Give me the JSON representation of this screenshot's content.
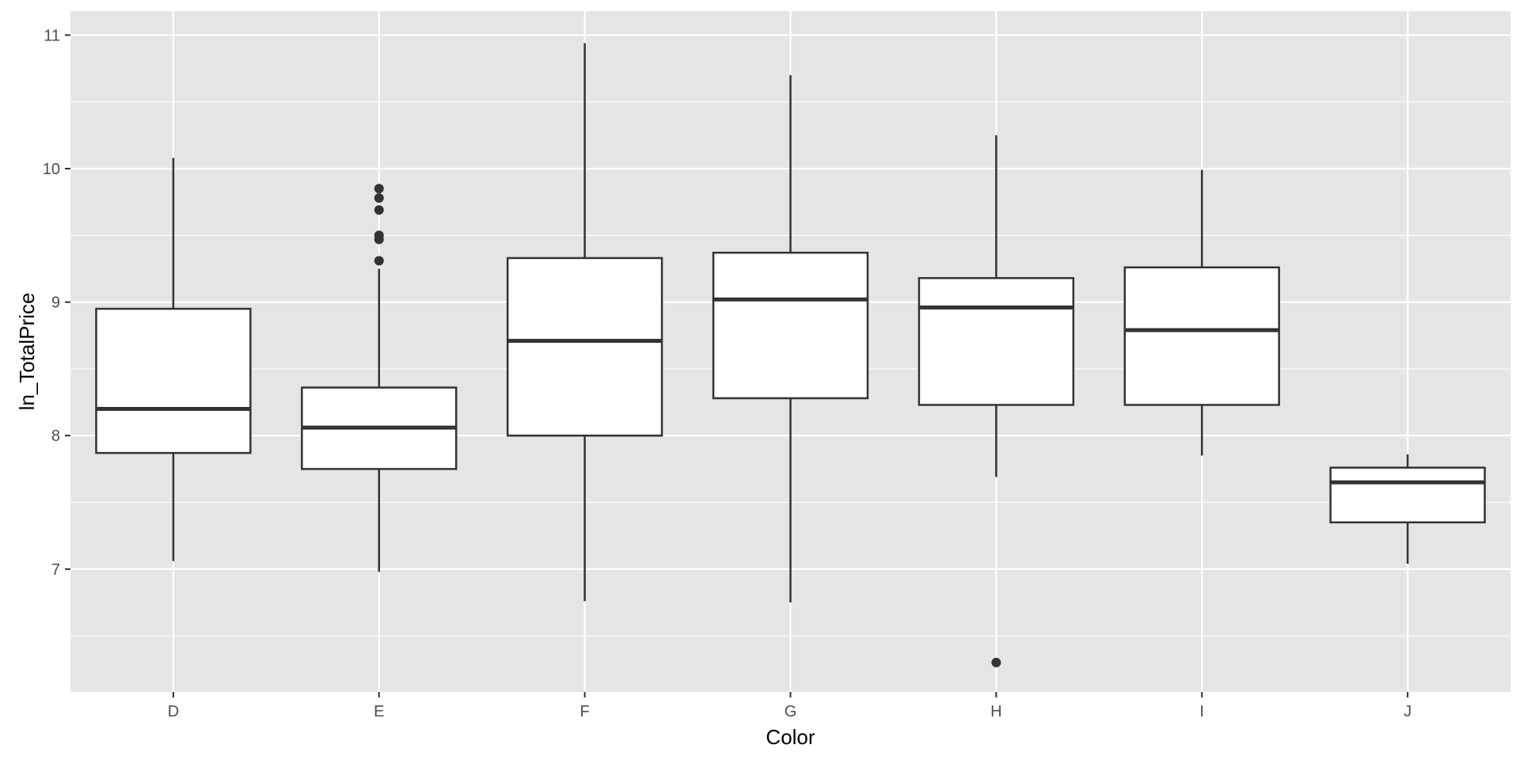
{
  "chart_data": {
    "type": "boxplot",
    "xlabel": "Color",
    "ylabel": "ln_TotalPrice",
    "ylim": [
      6.08,
      11.18
    ],
    "y_major_ticks": [
      7,
      8,
      9,
      10,
      11
    ],
    "y_minor_ticks": [
      6.5,
      7.5,
      8.5,
      9.5,
      10.5
    ],
    "grid": true,
    "categories": [
      "D",
      "E",
      "F",
      "G",
      "H",
      "I",
      "J"
    ],
    "boxes": [
      {
        "category": "D",
        "whisker_low": 7.06,
        "q1": 7.87,
        "median": 8.2,
        "q3": 8.95,
        "whisker_high": 10.08,
        "outliers": []
      },
      {
        "category": "E",
        "whisker_low": 6.98,
        "q1": 7.75,
        "median": 8.06,
        "q3": 8.36,
        "whisker_high": 9.25,
        "outliers": [
          9.31,
          9.47,
          9.5,
          9.69,
          9.78,
          9.85
        ]
      },
      {
        "category": "F",
        "whisker_low": 6.76,
        "q1": 8.0,
        "median": 8.71,
        "q3": 9.33,
        "whisker_high": 10.94,
        "outliers": []
      },
      {
        "category": "G",
        "whisker_low": 6.75,
        "q1": 8.28,
        "median": 9.02,
        "q3": 9.37,
        "whisker_high": 10.7,
        "outliers": []
      },
      {
        "category": "H",
        "whisker_low": 7.69,
        "q1": 8.23,
        "median": 8.96,
        "q3": 9.18,
        "whisker_high": 10.25,
        "outliers": [
          6.3
        ]
      },
      {
        "category": "I",
        "whisker_low": 7.85,
        "q1": 8.23,
        "median": 8.79,
        "q3": 9.26,
        "whisker_high": 9.99,
        "outliers": []
      },
      {
        "category": "J",
        "whisker_low": 7.04,
        "q1": 7.35,
        "median": 7.65,
        "q3": 7.76,
        "whisker_high": 7.86,
        "outliers": []
      }
    ]
  }
}
